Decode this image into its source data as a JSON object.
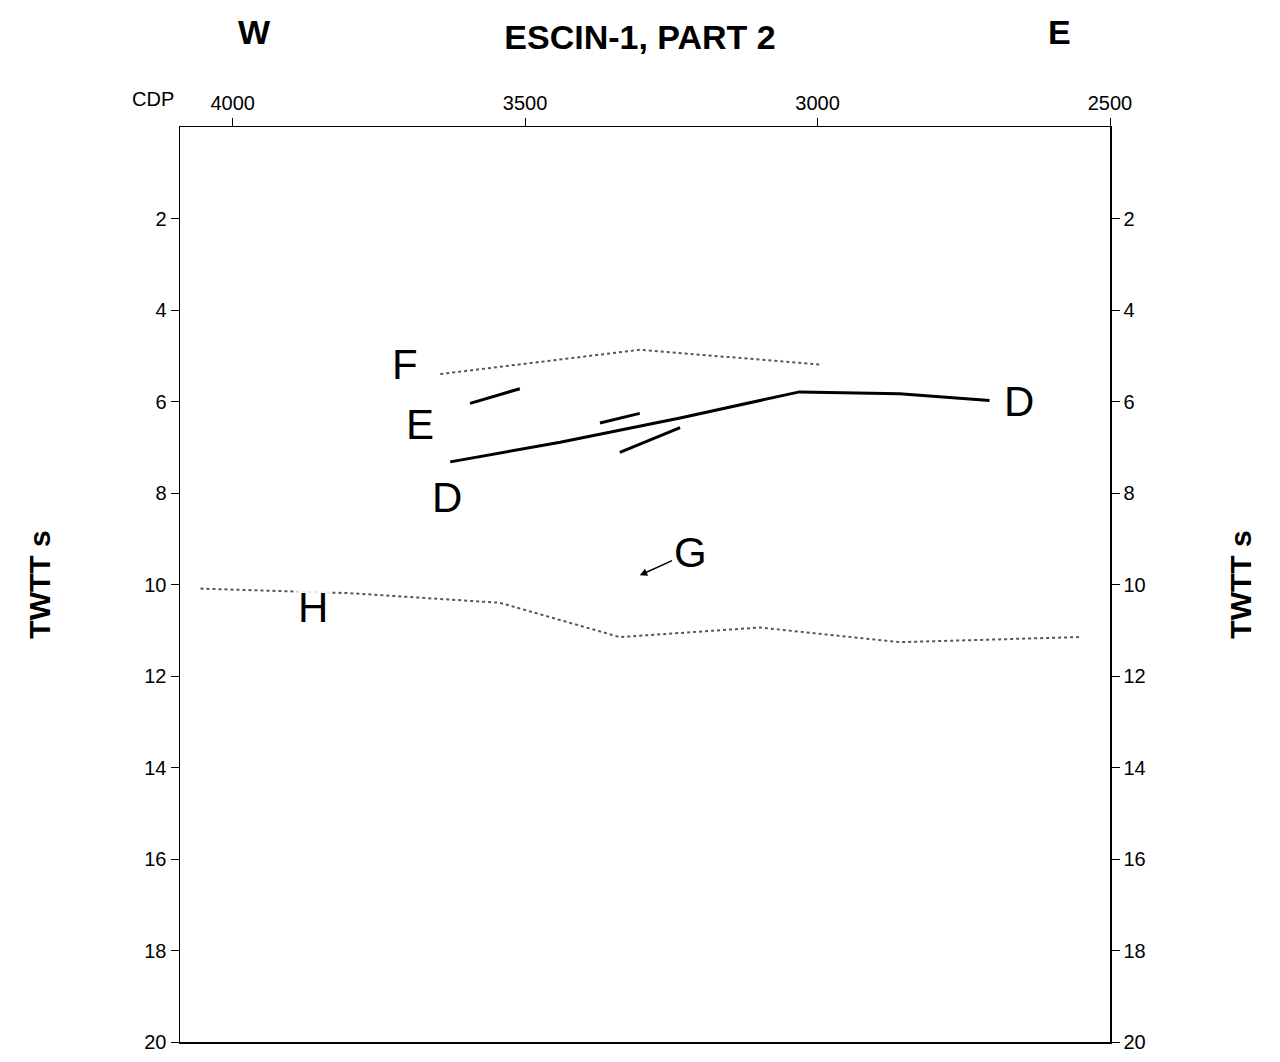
{
  "chart_data": {
    "type": "line",
    "title": "ESCIN-1, PART 2",
    "direction_labels": {
      "left": "W",
      "right": "E"
    },
    "xlabel": "CDP",
    "ylabel": "TWTT s",
    "y2label": "TWTT s",
    "xlim": [
      4090,
      2500
    ],
    "xticks": [
      4000,
      3500,
      3000,
      2500
    ],
    "ylim": [
      20,
      0
    ],
    "yticks": [
      2,
      4,
      6,
      8,
      10,
      12,
      14,
      16,
      18,
      20
    ],
    "y2lim": [
      20,
      0
    ],
    "y2ticks": [
      2,
      4,
      6,
      8,
      10,
      12,
      14,
      16,
      18,
      20
    ],
    "grid": false,
    "series": [
      {
        "color": "#000000",
        "line_style": "solid",
        "x": [
          3628,
          3440,
          3235,
          3031,
          2860,
          2706
        ],
        "values": [
          7.32,
          6.89,
          6.36,
          5.79,
          5.83,
          5.98
        ]
      },
      {
        "color": "#000000",
        "line_style": "solid",
        "x": [
          3594,
          3509
        ],
        "values": [
          6.04,
          5.72
        ]
      },
      {
        "color": "#000000",
        "line_style": "solid",
        "x": [
          3372,
          3304
        ],
        "values": [
          6.47,
          6.26
        ]
      },
      {
        "color": "#000000",
        "line_style": "solid",
        "x": [
          3338,
          3235
        ],
        "values": [
          7.11,
          6.57
        ]
      },
      {
        "color": "#555555",
        "line_style": "dot",
        "x": [
          3645,
          3304,
          2997
        ],
        "values": [
          5.4,
          4.87,
          5.19
        ]
      },
      {
        "color": "#555555",
        "line_style": "dot",
        "x": [
          4055,
          3799,
          3543,
          3338,
          3099,
          2860,
          2553
        ],
        "values": [
          10.09,
          10.19,
          10.4,
          11.15,
          10.94,
          11.26,
          11.15
        ]
      }
    ],
    "annotations": [
      {
        "text": "F",
        "x": 3705,
        "y": 5.2
      },
      {
        "text": "E",
        "x": 3679,
        "y": 6.5
      },
      {
        "text": "D",
        "x": 3633,
        "y": 8.1
      },
      {
        "text": "D",
        "x": 2655,
        "y": 6.0
      },
      {
        "text": "H",
        "x": 3862,
        "y": 10.5
      },
      {
        "text": "G",
        "x": 3218,
        "y": 9.3,
        "arrow_to": [
          3304,
          9.8
        ]
      }
    ]
  }
}
